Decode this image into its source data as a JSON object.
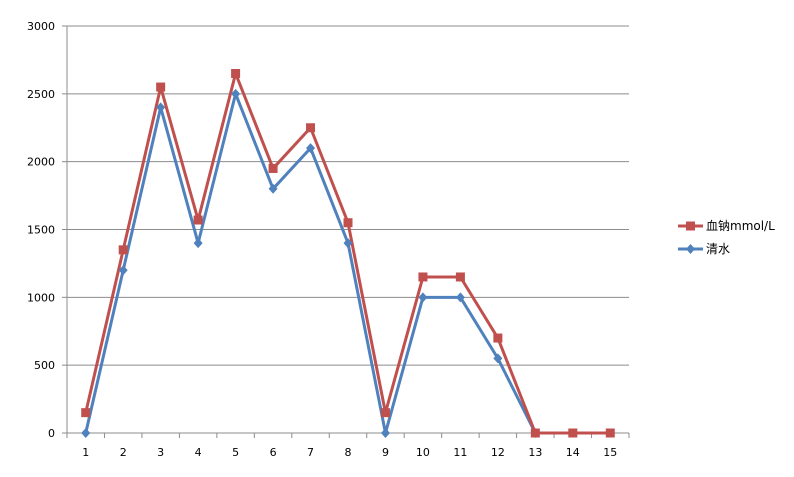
{
  "chart_data": {
    "type": "line",
    "title": "",
    "xlabel": "",
    "ylabel": "",
    "categories": [
      "1",
      "2",
      "3",
      "4",
      "5",
      "6",
      "7",
      "8",
      "9",
      "10",
      "11",
      "12",
      "13",
      "14",
      "15"
    ],
    "ylim": [
      0,
      3000
    ],
    "yticks": [
      0,
      500,
      1000,
      1500,
      2000,
      2500,
      3000
    ],
    "grid": true,
    "legend_position": "right",
    "series": [
      {
        "name": "血钠mmol/L",
        "color": "#C0504D",
        "marker": "square",
        "values": [
          150,
          1350,
          2550,
          1570,
          2650,
          1950,
          2250,
          1550,
          150,
          1150,
          1150,
          700,
          0,
          0,
          0
        ]
      },
      {
        "name": "清水",
        "color": "#4F81BD",
        "marker": "diamond",
        "values": [
          0,
          1200,
          2400,
          1400,
          2500,
          1800,
          2100,
          1400,
          0,
          1000,
          1000,
          550,
          0,
          null,
          null
        ]
      }
    ]
  }
}
